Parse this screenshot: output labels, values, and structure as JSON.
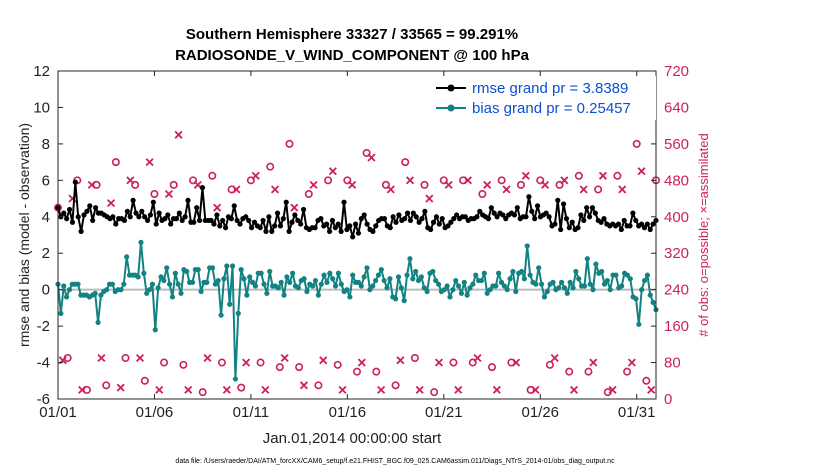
{
  "chart_data": {
    "type": "line",
    "title_line1": "Southern Hemisphere 33327 / 33565 = 99.291%",
    "title_line2": "RADIOSONDE_V_WIND_COMPONENT @ 100 hPa",
    "xlabel": "Jan.01,2014 00:00:00 start",
    "ylabel": "rmse and bias (model - observation)",
    "ylabel_right": "# of obs: o=possible; ×=assimilated",
    "xlim": [
      0,
      124
    ],
    "ylim": [
      -6,
      12
    ],
    "ylim_right": [
      0,
      720
    ],
    "x_ticks": [
      0,
      20,
      40,
      60,
      80,
      100,
      120
    ],
    "x_tick_labels": [
      "01/01",
      "01/06",
      "01/11",
      "01/16",
      "01/21",
      "01/26",
      "01/31"
    ],
    "y_ticks": [
      -6,
      -4,
      -2,
      0,
      2,
      4,
      6,
      8,
      10,
      12
    ],
    "y_ticks_right": [
      0,
      80,
      160,
      240,
      320,
      400,
      480,
      560,
      640,
      720
    ],
    "legend": [
      "rmse grand pr = 3.8389",
      "bias grand pr = 0.25457"
    ],
    "footnote": "data file: /Users/raeder/DAI/ATM_forcXX/CAM6_setup/f.e21.FHIST_BGC.f09_025.CAM6assim.011/Diags_NTrS_2014-01/obs_diag_output.nc",
    "colors": {
      "rmse": "#000000",
      "bias": "#138282",
      "counts": "#cc1f5e",
      "zero": "#bbbbbb",
      "legend_text": "#0b4fd4"
    },
    "series": [
      {
        "name": "rmse",
        "values": [
          4.5,
          4.0,
          4.2,
          3.9,
          4.4,
          3.7,
          5.9,
          4.0,
          3.2,
          4.1,
          4.3,
          4.6,
          3.8,
          4.5,
          4.2,
          4.2,
          4.1,
          4.0,
          3.9,
          4.0,
          3.6,
          3.9,
          3.9,
          3.8,
          4.3,
          4.0,
          4.9,
          4.2,
          4.0,
          4.3,
          4.0,
          3.8,
          4.1,
          4.8,
          3.6,
          4.2,
          3.8,
          3.9,
          4.1,
          3.6,
          3.9,
          3.9,
          4.2,
          3.8,
          4.0,
          4.9,
          3.7,
          3.7,
          4.5,
          3.8,
          5.6,
          3.8,
          3.8,
          3.8,
          3.6,
          4.1,
          3.5,
          3.8,
          3.4,
          4.0,
          3.9,
          4.6,
          3.8,
          3.6,
          3.9,
          4.0,
          3.8,
          3.4,
          3.7,
          3.5,
          3.4,
          3.8,
          3.2,
          4.0,
          3.2,
          3.5,
          4.2,
          3.5,
          3.9,
          4.8,
          3.2,
          3.7,
          4.1,
          3.8,
          3.6,
          4.4,
          3.4,
          3.3,
          3.4,
          3.4,
          3.8,
          3.9,
          3.5,
          3.6,
          3.2,
          3.8,
          3.4,
          3.6,
          3.2,
          4.8,
          3.3,
          3.5,
          2.9,
          3.6,
          3.1,
          3.9,
          4.1,
          3.6,
          3.3,
          3.2,
          3.5,
          3.8,
          3.9,
          3.9,
          3.5,
          3.4,
          4.0,
          3.7,
          4.1,
          3.8,
          3.9,
          4.2,
          3.8,
          4.2,
          4.0,
          3.7,
          3.9,
          4.3,
          3.4,
          3.3,
          3.7,
          4.0,
          3.6,
          3.9,
          3.4,
          3.5,
          3.7,
          3.9,
          4.1,
          3.9,
          4.0,
          4.0,
          3.8,
          3.9,
          3.9,
          4.0,
          4.3,
          4.1,
          4.0,
          3.9,
          4.5,
          4.2,
          4.0,
          4.2,
          4.1,
          3.9,
          4.1,
          4.2,
          4.1,
          4.5,
          3.9,
          4.0,
          4.0,
          5.1,
          4.3,
          3.9,
          4.6,
          4.0,
          4.1,
          4.2,
          4.0,
          3.5,
          3.6,
          4.9,
          3.3,
          4.7,
          3.9,
          3.4,
          3.7,
          3.3,
          3.4,
          4.1,
          3.8,
          4.5,
          4.0,
          4.5,
          4.2,
          3.8,
          3.7,
          3.9,
          3.6,
          3.5,
          3.6,
          3.5,
          3.6,
          3.3,
          3.8,
          3.5,
          3.5,
          4.2,
          3.8,
          3.5,
          3.6,
          3.4,
          3.6,
          3.3,
          3.6,
          3.8
        ]
      },
      {
        "name": "bias",
        "values": [
          0.3,
          -1.3,
          0.2,
          -0.4,
          0.0,
          0.3,
          0.3,
          0.3,
          -0.3,
          -0.3,
          -0.3,
          -0.4,
          -0.3,
          -0.2,
          -1.8,
          -0.3,
          -0.1,
          0.0,
          0.3,
          0.3,
          -0.1,
          0.0,
          0.0,
          0.3,
          1.8,
          0.8,
          0.8,
          0.8,
          0.7,
          2.6,
          0.9,
          -0.2,
          0.0,
          0.3,
          -2.2,
          0.1,
          0.7,
          0.5,
          1.2,
          0.3,
          -0.4,
          0.9,
          0.3,
          -0.2,
          1.1,
          1.0,
          0.4,
          0.4,
          1.1,
          1.1,
          -0.1,
          0.4,
          0.4,
          1.2,
          1.2,
          0.3,
          0.5,
          -1.4,
          0.6,
          1.3,
          -0.8,
          1.3,
          -4.9,
          -1.3,
          1.1,
          0.6,
          -0.3,
          0.7,
          0.4,
          0.2,
          0.9,
          0.9,
          0.3,
          -0.2,
          1.0,
          0.2,
          0.2,
          0.1,
          0.4,
          -0.3,
          0.7,
          0.4,
          0.9,
          0.2,
          0.1,
          0.5,
          0.6,
          -0.1,
          0.3,
          0.2,
          0.5,
          -0.3,
          0.3,
          0.8,
          0.4,
          0.9,
          0.6,
          0.2,
          0.9,
          0.3,
          -0.1,
          0.0,
          -0.4,
          0.8,
          0.4,
          0.4,
          0.2,
          0.7,
          1.2,
          0.0,
          0.2,
          0.5,
          0.8,
          1.1,
          0.5,
          0.1,
          0.6,
          -0.4,
          -0.5,
          0.7,
          0.1,
          -0.6,
          0.8,
          1.7,
          0.6,
          1.0,
          0.5,
          0.7,
          0.1,
          -0.1,
          0.9,
          1.0,
          0.5,
          0.3,
          -0.1,
          0.0,
          0.2,
          -0.4,
          0.0,
          0.5,
          0.2,
          -0.2,
          0.4,
          -0.3,
          0.1,
          0.3,
          0.8,
          0.5,
          0.5,
          0.9,
          -0.2,
          0.0,
          0.2,
          0.2,
          0.9,
          0.4,
          0.2,
          0.0,
          0.6,
          1.0,
          -0.1,
          0.9,
          1.0,
          0.6,
          2.4,
          0.8,
          0.4,
          0.3,
          1.2,
          0.3,
          -0.4,
          -0.1,
          0.3,
          0.4,
          0.0,
          0.1,
          0.4,
          0.1,
          -0.2,
          0.4,
          0.1,
          1.0,
          0.6,
          0.2,
          0.2,
          1.7,
          0.3,
          0.0,
          1.4,
          0.9,
          1.0,
          0.3,
          0.5,
          0.0,
          0.8,
          0.8,
          0.1,
          0.2,
          0.9,
          0.8,
          0.6,
          -0.4,
          -0.5,
          -1.9,
          0.0,
          0.5,
          0.8,
          -0.3,
          -0.7,
          -1.1
        ]
      },
      {
        "name": "obs_possible",
        "x": [
          0,
          2,
          4,
          6,
          8,
          10,
          12,
          14,
          16,
          18,
          20,
          22,
          24,
          26,
          28,
          30,
          32,
          34,
          36,
          38,
          40,
          42,
          44,
          46,
          48,
          50,
          52,
          54,
          56,
          58,
          60,
          62,
          64,
          66,
          68,
          70,
          72,
          74,
          76,
          78,
          80,
          82,
          84,
          86,
          88,
          90,
          92,
          94,
          96,
          98,
          100,
          102,
          104,
          106,
          108,
          110,
          112,
          114,
          116,
          118,
          120,
          122,
          124
        ],
        "values": [
          420,
          90,
          480,
          20,
          470,
          30,
          520,
          90,
          470,
          40,
          450,
          80,
          470,
          75,
          480,
          15,
          490,
          80,
          460,
          25,
          480,
          80,
          510,
          70,
          560,
          70,
          450,
          30,
          480,
          75,
          480,
          60,
          540,
          60,
          470,
          30,
          520,
          90,
          470,
          15,
          480,
          80,
          480,
          80,
          450,
          70,
          480,
          80,
          470,
          20,
          480,
          75,
          470,
          60,
          490,
          60,
          460,
          15,
          490,
          60,
          560,
          40,
          480
        ]
      },
      {
        "name": "obs_assimilated",
        "x": [
          1,
          3,
          5,
          7,
          9,
          11,
          13,
          15,
          17,
          19,
          21,
          23,
          25,
          27,
          29,
          31,
          33,
          35,
          37,
          39,
          41,
          43,
          45,
          47,
          49,
          51,
          53,
          55,
          57,
          59,
          61,
          63,
          65,
          67,
          69,
          71,
          73,
          75,
          77,
          79,
          81,
          83,
          85,
          87,
          89,
          91,
          93,
          95,
          97,
          99,
          101,
          103,
          105,
          107,
          109,
          111,
          113,
          115,
          117,
          119,
          121,
          123
        ],
        "values": [
          85,
          440,
          20,
          470,
          90,
          430,
          25,
          480,
          90,
          520,
          20,
          450,
          580,
          20,
          470,
          90,
          420,
          20,
          460,
          80,
          490,
          20,
          460,
          90,
          420,
          30,
          470,
          85,
          500,
          20,
          470,
          80,
          530,
          20,
          460,
          85,
          480,
          20,
          440,
          80,
          470,
          20,
          480,
          90,
          470,
          20,
          460,
          80,
          490,
          20,
          470,
          90,
          480,
          20,
          460,
          80,
          490,
          20,
          460,
          80,
          500,
          20
        ]
      }
    ]
  }
}
